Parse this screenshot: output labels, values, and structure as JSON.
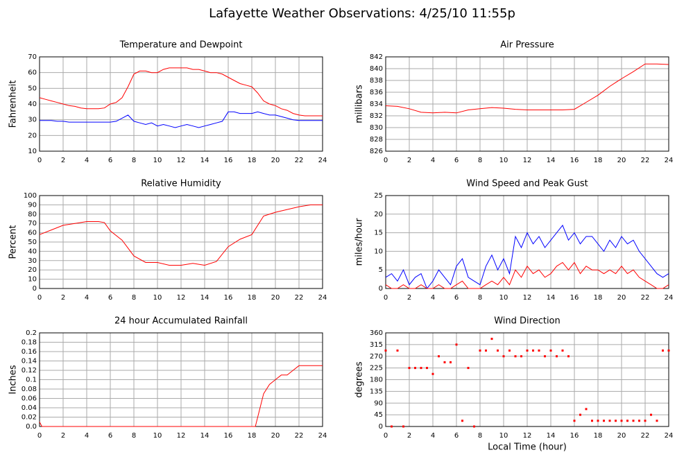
{
  "title": "Lafayette Weather Observations: 4/25/10 11:55p",
  "chart_data": [
    {
      "type": "line",
      "title": "Temperature and Dewpoint",
      "ylabel": "Fahrenheit",
      "x": [
        0,
        0.5,
        1,
        1.5,
        2,
        2.5,
        3,
        3.5,
        4,
        4.5,
        5,
        5.5,
        6,
        6.5,
        7,
        7.5,
        8,
        8.5,
        9,
        9.5,
        10,
        10.5,
        11,
        11.5,
        12,
        12.5,
        13,
        13.5,
        14,
        14.5,
        15,
        15.5,
        16,
        16.5,
        17,
        17.5,
        18,
        18.5,
        19,
        19.5,
        20,
        20.5,
        21,
        21.5,
        22,
        22.5,
        23,
        23.5,
        24
      ],
      "series": [
        {
          "color": "#ff0000",
          "values": [
            44,
            43,
            42,
            41,
            40,
            39,
            38.5,
            37.5,
            37,
            37,
            37,
            37.5,
            40,
            41,
            44,
            51,
            59,
            61,
            61,
            60,
            60,
            62,
            63,
            63,
            63,
            63,
            62,
            62,
            61,
            60,
            60,
            59,
            57,
            55,
            53,
            52,
            51,
            47,
            42,
            40,
            39,
            37,
            36,
            34,
            33,
            32.5,
            32.5,
            32.5,
            32.5
          ]
        },
        {
          "color": "#0000ff",
          "values": [
            29.5,
            29.5,
            29.5,
            29,
            29,
            28.5,
            28.5,
            28.5,
            28.5,
            28.5,
            28.5,
            28.5,
            28.5,
            29,
            31,
            33,
            29,
            28,
            27,
            28,
            26,
            27,
            26,
            25,
            26,
            27,
            26,
            25,
            26,
            27,
            28,
            29,
            35,
            35,
            34,
            34,
            34,
            35,
            34,
            33,
            33,
            32,
            31,
            30,
            29.5,
            29.5,
            29.5,
            29.5,
            29.5
          ]
        }
      ],
      "xlim": [
        0,
        24
      ],
      "xticks": [
        0,
        2,
        4,
        6,
        8,
        10,
        12,
        14,
        16,
        18,
        20,
        22,
        24
      ],
      "ylim": [
        10,
        70
      ],
      "yticks": [
        10,
        20,
        30,
        40,
        50,
        60,
        70
      ],
      "grid": true
    },
    {
      "type": "line",
      "title": "Air Pressure",
      "ylabel": "millibars",
      "x": [
        0,
        1,
        2,
        3,
        4,
        5,
        6,
        7,
        8,
        9,
        10,
        11,
        12,
        13,
        14,
        15,
        16,
        17,
        18,
        19,
        20,
        21,
        22,
        23,
        24
      ],
      "series": [
        {
          "color": "#ff0000",
          "values": [
            833.7,
            833.6,
            833.2,
            832.6,
            832.5,
            832.6,
            832.5,
            833.0,
            833.2,
            833.4,
            833.3,
            833.1,
            833.0,
            833.0,
            833.0,
            833.0,
            833.1,
            834.3,
            835.5,
            837.0,
            838.3,
            839.5,
            840.8,
            840.8,
            840.7
          ]
        }
      ],
      "xlim": [
        0,
        24
      ],
      "xticks": [
        0,
        2,
        4,
        6,
        8,
        10,
        12,
        14,
        16,
        18,
        20,
        22,
        24
      ],
      "ylim": [
        826,
        842
      ],
      "yticks": [
        826,
        828,
        830,
        832,
        834,
        836,
        838,
        840,
        842
      ],
      "grid": true
    },
    {
      "type": "line",
      "title": "Relative Humidity",
      "ylabel": "Percent",
      "x": [
        0,
        1,
        2,
        3,
        4,
        5,
        5.5,
        6,
        7,
        8,
        9,
        10,
        11,
        12,
        13,
        14,
        15,
        16,
        17,
        18,
        19,
        20,
        21,
        22,
        23,
        24
      ],
      "series": [
        {
          "color": "#ff0000",
          "values": [
            58,
            63,
            68,
            70,
            72,
            72,
            71,
            62,
            52,
            35,
            28,
            28,
            25,
            25,
            27,
            25,
            29,
            45,
            53,
            58,
            78,
            82,
            85,
            88,
            90,
            90
          ]
        }
      ],
      "xlim": [
        0,
        24
      ],
      "xticks": [
        0,
        2,
        4,
        6,
        8,
        10,
        12,
        14,
        16,
        18,
        20,
        22,
        24
      ],
      "ylim": [
        0,
        100
      ],
      "yticks": [
        0,
        10,
        20,
        30,
        40,
        50,
        60,
        70,
        80,
        90,
        100
      ],
      "grid": true
    },
    {
      "type": "line",
      "title": "Wind Speed and Peak Gust",
      "ylabel": "miles/hour",
      "x": [
        0,
        0.5,
        1,
        1.5,
        2,
        2.5,
        3,
        3.5,
        4,
        4.5,
        5,
        5.5,
        6,
        6.5,
        7,
        7.5,
        8,
        8.5,
        9,
        9.5,
        10,
        10.5,
        11,
        11.5,
        12,
        12.5,
        13,
        13.5,
        14,
        14.5,
        15,
        15.5,
        16,
        16.5,
        17,
        17.5,
        18,
        18.5,
        19,
        19.5,
        20,
        20.5,
        21,
        21.5,
        22,
        22.5,
        23,
        23.5,
        24
      ],
      "series": [
        {
          "color": "#0000ff",
          "values": [
            3,
            4,
            2,
            5,
            1,
            3,
            4,
            0,
            2,
            5,
            3,
            1,
            6,
            8,
            3,
            2,
            1,
            6,
            9,
            5,
            8,
            4,
            14,
            11,
            15,
            12,
            14,
            11,
            13,
            15,
            17,
            13,
            15,
            12,
            14,
            14,
            12,
            10,
            13,
            11,
            14,
            12,
            13,
            10,
            8,
            6,
            4,
            3,
            4
          ]
        },
        {
          "color": "#ff0000",
          "values": [
            1,
            0,
            0,
            1,
            0,
            0,
            1,
            0,
            0,
            1,
            0,
            0,
            1,
            2,
            0,
            0,
            0,
            1,
            2,
            1,
            3,
            1,
            5,
            3,
            6,
            4,
            5,
            3,
            4,
            6,
            7,
            5,
            7,
            4,
            6,
            5,
            5,
            4,
            5,
            4,
            6,
            4,
            5,
            3,
            2,
            1,
            0,
            0,
            1
          ]
        }
      ],
      "xlim": [
        0,
        24
      ],
      "xticks": [
        0,
        2,
        4,
        6,
        8,
        10,
        12,
        14,
        16,
        18,
        20,
        22,
        24
      ],
      "ylim": [
        0,
        25
      ],
      "yticks": [
        0,
        5,
        10,
        15,
        20,
        25
      ],
      "grid": true
    },
    {
      "type": "line",
      "title": "24 hour Accumulated Rainfall",
      "ylabel": "Inches",
      "x": [
        0,
        0.2,
        18.3,
        18.7,
        19,
        19.5,
        20,
        20.5,
        21,
        21.5,
        22,
        24
      ],
      "series": [
        {
          "color": "#ff0000",
          "values": [
            0.01,
            0,
            0,
            0.04,
            0.07,
            0.09,
            0.1,
            0.11,
            0.11,
            0.12,
            0.13,
            0.13
          ]
        }
      ],
      "xlim": [
        0,
        24
      ],
      "xticks": [
        0,
        2,
        4,
        6,
        8,
        10,
        12,
        14,
        16,
        18,
        20,
        22,
        24
      ],
      "ylim": [
        0,
        0.2
      ],
      "yticks": [
        {
          "value": 0,
          "label": "0.0"
        },
        0.02,
        0.04,
        0.06,
        0.08,
        0.1,
        0.12,
        0.14,
        0.16,
        0.18,
        0.2
      ],
      "grid": true
    },
    {
      "type": "scatter",
      "title": "Wind Direction",
      "ylabel": "degrees",
      "xlabel": "Local Time (hour)",
      "x": [
        0,
        0.5,
        1,
        1.5,
        2,
        2.5,
        3,
        3.5,
        4,
        4.5,
        5,
        5.5,
        6,
        6.5,
        7,
        7.5,
        8,
        8.5,
        9,
        9.5,
        10,
        10.5,
        11,
        11.5,
        12,
        12.5,
        13,
        13.5,
        14,
        14.5,
        15,
        15.5,
        16,
        16.5,
        17,
        17.5,
        18,
        18.5,
        19,
        19.5,
        20,
        20.5,
        21,
        21.5,
        22,
        22.5,
        23,
        23.5,
        24
      ],
      "series": [
        {
          "color": "#ff0000",
          "values": [
            292,
            0,
            292,
            0,
            225,
            225,
            225,
            225,
            202,
            270,
            247,
            247,
            315,
            22,
            225,
            0,
            292,
            292,
            337,
            292,
            270,
            292,
            270,
            270,
            292,
            292,
            292,
            270,
            292,
            270,
            292,
            270,
            22,
            45,
            67,
            22,
            22,
            22,
            22,
            22,
            22,
            22,
            22,
            22,
            22,
            45,
            22,
            292,
            292
          ]
        }
      ],
      "xlim": [
        0,
        24
      ],
      "xticks": [
        0,
        2,
        4,
        6,
        8,
        10,
        12,
        14,
        16,
        18,
        20,
        22,
        24
      ],
      "ylim": [
        0,
        360
      ],
      "yticks": [
        0,
        45,
        90,
        135,
        180,
        225,
        270,
        315,
        360
      ],
      "grid": true
    }
  ]
}
